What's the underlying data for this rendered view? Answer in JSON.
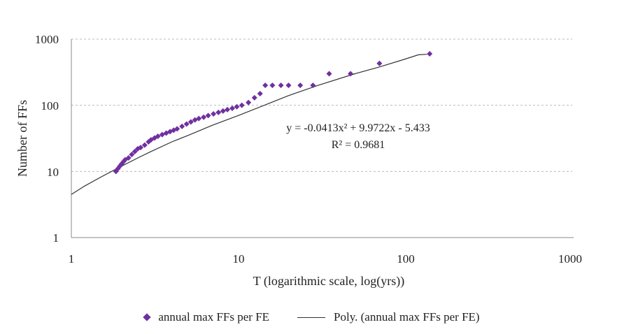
{
  "chart_data": {
    "type": "scatter",
    "xscale": "log",
    "yscale": "log",
    "xlim": [
      1,
      1000
    ],
    "ylim": [
      1,
      1000
    ],
    "xticks": [
      "1",
      "10",
      "100",
      "1000"
    ],
    "yticks": [
      "1",
      "10",
      "100",
      "1000"
    ],
    "xlabel": "T (logarithmic scale, log(yrs))",
    "ylabel": "Number of FFs",
    "grid": "horizontal dashed",
    "legend_position": "bottom",
    "series": [
      {
        "name": "annual max FFs per FE",
        "kind": "scatter",
        "color": "#7030a0",
        "x": [
          1.85,
          1.9,
          1.95,
          2.0,
          2.05,
          2.1,
          2.2,
          2.3,
          2.4,
          2.5,
          2.6,
          2.75,
          2.9,
          3.0,
          3.15,
          3.3,
          3.5,
          3.7,
          3.9,
          4.1,
          4.3,
          4.6,
          4.9,
          5.2,
          5.5,
          5.8,
          6.2,
          6.6,
          7.1,
          7.6,
          8.1,
          8.6,
          9.2,
          9.8,
          10.5,
          11.5,
          12.5,
          13.5,
          14.5,
          16.0,
          18.0,
          20.0,
          23.5,
          28.0,
          35.0,
          47.0,
          70.0,
          140.0
        ],
        "y": [
          10,
          11,
          12,
          13,
          14,
          15,
          16,
          18,
          20,
          22,
          23,
          25,
          28,
          30,
          32,
          34,
          36,
          38,
          40,
          42,
          44,
          48,
          52,
          56,
          60,
          63,
          66,
          70,
          74,
          78,
          82,
          86,
          90,
          95,
          100,
          110,
          130,
          150,
          200,
          200,
          200,
          200,
          200,
          200,
          300,
          300,
          430,
          600
        ]
      },
      {
        "name": "Poly. (annual max FFs per FE)",
        "kind": "trendline",
        "color": "#333333",
        "x": [
          1.0,
          1.2,
          1.5,
          2.0,
          2.5,
          3.0,
          4.0,
          5.0,
          7.0,
          10.0,
          15.0,
          20.0,
          30.0,
          50.0,
          70.0,
          100.0,
          120.0,
          135.0
        ],
        "y": [
          4.5,
          6,
          8.2,
          12,
          16,
          20,
          28,
          35,
          50,
          70,
          105,
          140,
          200,
          300,
          380,
          500,
          580,
          590
        ]
      }
    ],
    "annotations": {
      "equation": "y = -0.0413x² + 9.9722x - 5.433",
      "r_squared": "R² = 0.9681"
    },
    "legend": {
      "scatter_label": "annual max FFs per FE",
      "line_label": "Poly. (annual max FFs per FE)"
    }
  }
}
